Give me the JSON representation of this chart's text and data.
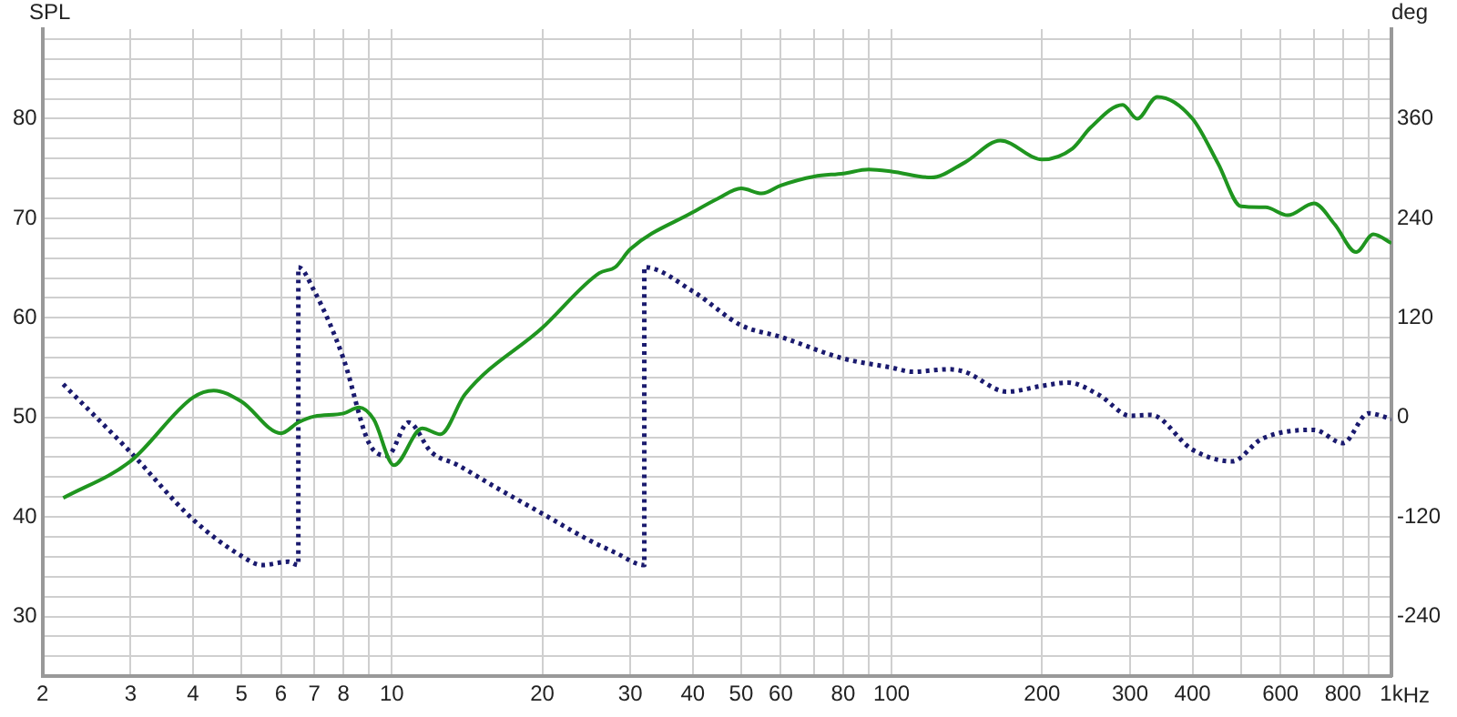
{
  "chart_data": {
    "type": "line",
    "ylabel": "SPL",
    "y2label": "deg",
    "log": "x",
    "grid": true,
    "legend": false,
    "marker": "none",
    "xlim": [
      2,
      1000
    ],
    "xticks": [
      2,
      3,
      4,
      5,
      6,
      7,
      8,
      {
        "value": 9,
        "label": null
      },
      10,
      20,
      30,
      40,
      50,
      60,
      {
        "value": 70,
        "label": null
      },
      80,
      {
        "value": 90,
        "label": null
      },
      100,
      200,
      300,
      400,
      {
        "value": 500,
        "label": null
      },
      600,
      {
        "value": 700,
        "label": null
      },
      800,
      {
        "value": 900,
        "label": null
      },
      {
        "value": 1000,
        "label": "1k"
      }
    ],
    "xlabel": "Hz",
    "ylim": [
      24,
      89
    ],
    "yticks": [
      {
        "value": 26,
        "label": null
      },
      {
        "value": 28,
        "label": null
      },
      30,
      {
        "value": 32,
        "label": null
      },
      {
        "value": 34,
        "label": null
      },
      {
        "value": 36,
        "label": null
      },
      {
        "value": 38,
        "label": null
      },
      40,
      {
        "value": 42,
        "label": null
      },
      {
        "value": 44,
        "label": null
      },
      {
        "value": 46,
        "label": null
      },
      {
        "value": 48,
        "label": null
      },
      50,
      {
        "value": 52,
        "label": null
      },
      {
        "value": 54,
        "label": null
      },
      {
        "value": 56,
        "label": null
      },
      {
        "value": 58,
        "label": null
      },
      60,
      {
        "value": 62,
        "label": null
      },
      {
        "value": 64,
        "label": null
      },
      {
        "value": 66,
        "label": null
      },
      {
        "value": 68,
        "label": null
      },
      70,
      {
        "value": 72,
        "label": null
      },
      {
        "value": 74,
        "label": null
      },
      {
        "value": 76,
        "label": null
      },
      {
        "value": 78,
        "label": null
      },
      80,
      {
        "value": 82,
        "label": null
      },
      {
        "value": 84,
        "label": null
      },
      {
        "value": 86,
        "label": null
      },
      {
        "value": 88,
        "label": null
      }
    ],
    "y2lim": [
      -312,
      468
    ],
    "y2ticks": [
      -240,
      -120,
      0,
      120,
      240,
      360
    ],
    "series": [
      {
        "color": "#1f951f",
        "line_style": "solid",
        "x": [
          2.2,
          3,
          4,
          4.4,
          5,
          6,
          6.5,
          7,
          8,
          8.6,
          9.2,
          10.1,
          11.5,
          12.5,
          14,
          20,
          26,
          28,
          30,
          40,
          45,
          50,
          55,
          60,
          70,
          80,
          90,
          100,
          120,
          140,
          165,
          200,
          230,
          250,
          290,
          310,
          340,
          400,
          450,
          500,
          560,
          620,
          700,
          770,
          850,
          920,
          1000
        ],
        "values": [
          41.9,
          45.6,
          52,
          52.7,
          51.6,
          48.4,
          49.5,
          50.1,
          50.4,
          51,
          49.8,
          45.2,
          48.9,
          48.3,
          52.3,
          59,
          64.5,
          65.1,
          66.9,
          70.6,
          72,
          73,
          72.5,
          73.3,
          74.2,
          74.5,
          74.9,
          74.7,
          74.1,
          75.6,
          77.8,
          75.9,
          77,
          79.1,
          81.4,
          80,
          82.2,
          80,
          75.5,
          71.2,
          71.1,
          70.3,
          71.5,
          69.4,
          66.6,
          68.4,
          67.5
        ]
      },
      {
        "color": "#1a1a6e",
        "line_style": "dotted",
        "axis": "y2",
        "x": [
          2.2,
          3,
          4,
          5,
          5.5,
          6.2,
          6.5,
          6.5,
          7,
          8,
          9,
          9.8,
          10.8,
          12,
          13.5,
          16,
          20,
          25,
          28,
          32,
          32,
          40,
          50,
          60,
          80,
          100,
          110,
          130,
          140,
          170,
          200,
          225,
          260,
          300,
          330,
          400,
          480,
          550,
          700,
          800,
          900,
          1000
        ],
        "values": [
          40,
          -42,
          -123,
          -167,
          -178,
          -174,
          -178,
          181,
          152,
          71,
          -31,
          -46,
          -6,
          -42,
          -57,
          -83,
          -116,
          -149,
          -163,
          -178,
          181,
          152,
          111,
          97,
          71,
          60,
          55,
          58,
          55,
          31,
          38,
          42,
          27,
          2,
          3,
          -39,
          -53,
          -26,
          -15,
          -31,
          5,
          -2
        ]
      }
    ]
  }
}
